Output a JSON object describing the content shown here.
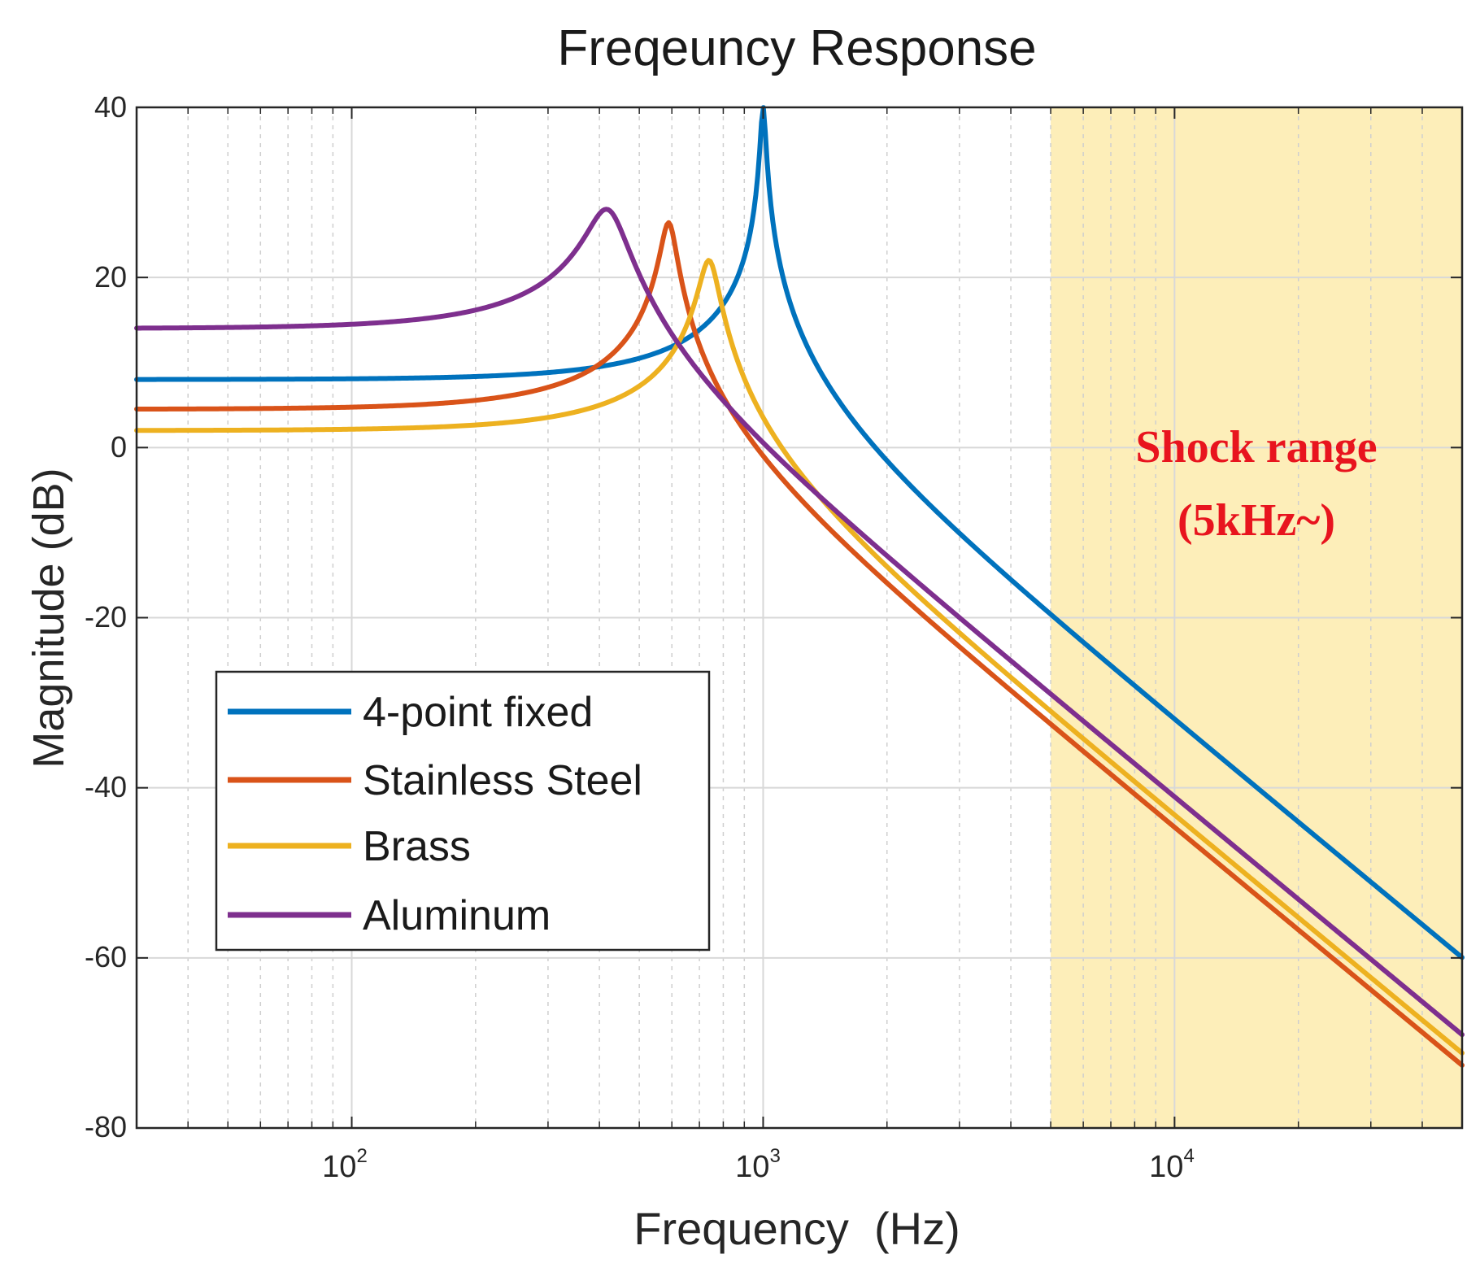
{
  "chart_data": {
    "type": "line",
    "title": "Freqeuncy Response",
    "xlabel": "Frequency  (Hz)",
    "ylabel": "Magnitude (dB)",
    "xscale": "log",
    "xlim": [
      30,
      50000
    ],
    "ylim": [
      -80,
      40
    ],
    "yticks": [
      40,
      20,
      0,
      -20,
      -40,
      -60,
      -80
    ],
    "yticklabels": [
      "40",
      "20",
      "0",
      "-20",
      "-40",
      "-60",
      "-80"
    ],
    "xticks": [
      {
        "value": 100,
        "base": "10",
        "exp": "2"
      },
      {
        "value": 1000,
        "base": "10",
        "exp": "3"
      },
      {
        "value": 10000,
        "base": "10",
        "exp": "4"
      }
    ],
    "grid": true,
    "legend": {
      "location": "lower-left",
      "entries": [
        "4-point fixed",
        "Stainless Steel",
        "Brass",
        "Aluminum"
      ]
    },
    "shaded_region": {
      "x_start": 5000,
      "x_end": 50000,
      "color": "#fdeeb9",
      "label_line1": "Shock range",
      "label_line2": "(5kHz~)",
      "label_color": "#e8141e"
    },
    "series": [
      {
        "name": "4-point fixed",
        "color": "#0072bd",
        "f0": 1000,
        "zeta": 0.0125,
        "dc_db": 8.0
      },
      {
        "name": "Stainless Steel",
        "color": "#d95319",
        "f0": 590,
        "zeta": 0.04,
        "dc_db": 4.5
      },
      {
        "name": "Brass",
        "color": "#edb120",
        "f0": 740,
        "zeta": 0.05,
        "dc_db": 2.0
      },
      {
        "name": "Aluminum",
        "color": "#7e2f8e",
        "f0": 420,
        "zeta": 0.1,
        "dc_db": 14.0
      }
    ]
  }
}
